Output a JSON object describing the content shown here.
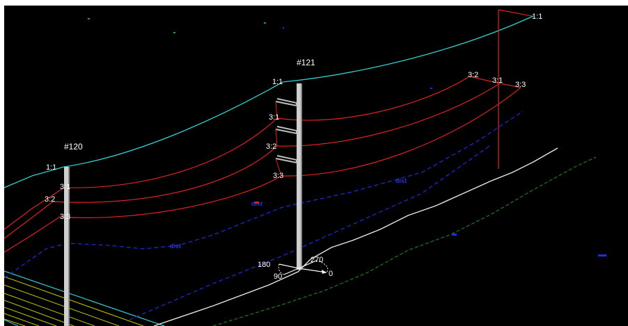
{
  "scene": {
    "background": "#000000",
    "colors": {
      "conductor": "#dd2222",
      "shield_wire": "#33cccc",
      "ground_line_blue": "#1c2ee0",
      "terrain_white": "#e8e8e8",
      "terrain_green": "#1f7a1f",
      "contours_yellow": "#c8c800",
      "pole": "#cfcfcf"
    },
    "poles": [
      {
        "id": "pole-120",
        "label": "#120",
        "attachments": [
          "1:1",
          "3:1",
          "3:2",
          "3:3"
        ]
      },
      {
        "id": "pole-121",
        "label": "#121",
        "attachments": [
          "1:1",
          "3:1",
          "3:2",
          "3:3"
        ]
      }
    ],
    "far_structure": {
      "attachments": [
        "1:1",
        "3:2",
        "3:1",
        "3:3"
      ]
    },
    "clearance_labels": [
      "dist",
      "dist",
      "dist"
    ],
    "compass": {
      "labels": [
        "180",
        "270",
        "90",
        "0"
      ]
    }
  }
}
